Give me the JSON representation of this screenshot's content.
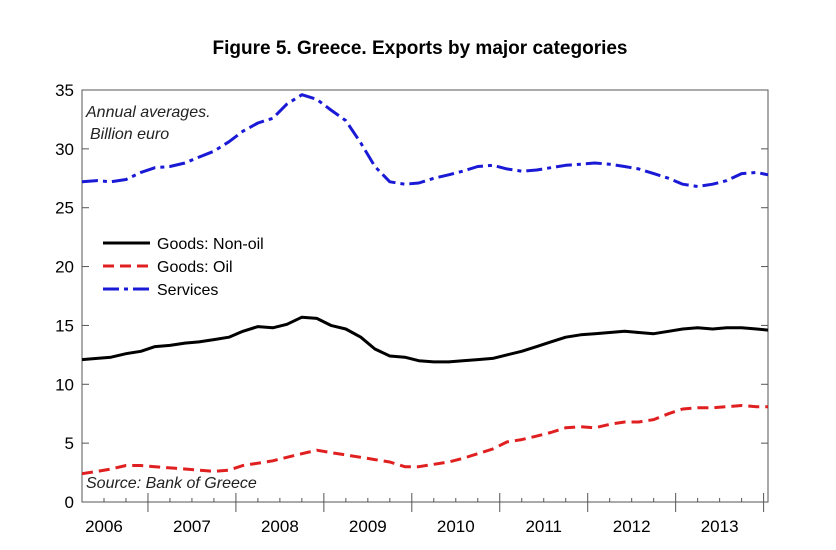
{
  "chart_data": {
    "type": "line",
    "title": "Figure 5. Greece. Exports by major categories",
    "subtitle_lines": [
      "Annual averages.",
      "Billion euro"
    ],
    "source": "Source: Bank of Greece",
    "xlabel": "",
    "ylabel": "",
    "xlim": [
      2005.75,
      2013.55
    ],
    "ylim": [
      0,
      35
    ],
    "y_ticks": [
      0,
      5,
      10,
      15,
      20,
      25,
      30,
      35
    ],
    "x_tick_labels": [
      {
        "label": "2006",
        "value": 2006.0
      },
      {
        "label": "2007",
        "value": 2007.0
      },
      {
        "label": "2008",
        "value": 2008.0
      },
      {
        "label": "2009",
        "value": 2009.0
      },
      {
        "label": "2010",
        "value": 2010.0
      },
      {
        "label": "2011",
        "value": 2011.0
      },
      {
        "label": "2012",
        "value": 2012.0
      },
      {
        "label": "2013",
        "value": 2013.0
      }
    ],
    "x_major_ticks": [
      2006.5,
      2007.5,
      2008.5,
      2009.5,
      2010.5,
      2011.5,
      2012.5,
      2013.5
    ],
    "grid": false,
    "legend_position": "left-middle",
    "series": [
      {
        "name": "Goods: Non-oil",
        "color": "#000000",
        "dash": "solid",
        "points": [
          [
            2005.75,
            12.1
          ],
          [
            2005.92,
            12.2
          ],
          [
            2006.08,
            12.3
          ],
          [
            2006.25,
            12.6
          ],
          [
            2006.42,
            12.8
          ],
          [
            2006.58,
            13.2
          ],
          [
            2006.75,
            13.3
          ],
          [
            2006.92,
            13.5
          ],
          [
            2007.08,
            13.6
          ],
          [
            2007.25,
            13.8
          ],
          [
            2007.42,
            14.0
          ],
          [
            2007.58,
            14.5
          ],
          [
            2007.75,
            14.9
          ],
          [
            2007.92,
            14.8
          ],
          [
            2008.08,
            15.1
          ],
          [
            2008.25,
            15.7
          ],
          [
            2008.42,
            15.6
          ],
          [
            2008.58,
            15.0
          ],
          [
            2008.75,
            14.7
          ],
          [
            2008.92,
            14.0
          ],
          [
            2009.08,
            13.0
          ],
          [
            2009.25,
            12.4
          ],
          [
            2009.42,
            12.3
          ],
          [
            2009.58,
            12.0
          ],
          [
            2009.75,
            11.9
          ],
          [
            2009.92,
            11.9
          ],
          [
            2010.08,
            12.0
          ],
          [
            2010.25,
            12.1
          ],
          [
            2010.42,
            12.2
          ],
          [
            2010.58,
            12.5
          ],
          [
            2010.75,
            12.8
          ],
          [
            2010.92,
            13.2
          ],
          [
            2011.08,
            13.6
          ],
          [
            2011.25,
            14.0
          ],
          [
            2011.42,
            14.2
          ],
          [
            2011.58,
            14.3
          ],
          [
            2011.75,
            14.4
          ],
          [
            2011.92,
            14.5
          ],
          [
            2012.08,
            14.4
          ],
          [
            2012.25,
            14.3
          ],
          [
            2012.42,
            14.5
          ],
          [
            2012.58,
            14.7
          ],
          [
            2012.75,
            14.8
          ],
          [
            2012.92,
            14.7
          ],
          [
            2013.08,
            14.8
          ],
          [
            2013.25,
            14.8
          ],
          [
            2013.42,
            14.7
          ],
          [
            2013.55,
            14.6
          ]
        ]
      },
      {
        "name": "Goods: Oil",
        "color": "#e02020",
        "dash": "dashed",
        "points": [
          [
            2005.75,
            2.4
          ],
          [
            2005.92,
            2.6
          ],
          [
            2006.08,
            2.8
          ],
          [
            2006.25,
            3.1
          ],
          [
            2006.42,
            3.1
          ],
          [
            2006.58,
            3.0
          ],
          [
            2006.75,
            2.9
          ],
          [
            2006.92,
            2.8
          ],
          [
            2007.08,
            2.7
          ],
          [
            2007.25,
            2.6
          ],
          [
            2007.42,
            2.7
          ],
          [
            2007.58,
            3.1
          ],
          [
            2007.75,
            3.3
          ],
          [
            2007.92,
            3.5
          ],
          [
            2008.08,
            3.8
          ],
          [
            2008.25,
            4.1
          ],
          [
            2008.42,
            4.4
          ],
          [
            2008.58,
            4.2
          ],
          [
            2008.75,
            4.0
          ],
          [
            2008.92,
            3.8
          ],
          [
            2009.08,
            3.6
          ],
          [
            2009.25,
            3.4
          ],
          [
            2009.42,
            3.0
          ],
          [
            2009.58,
            3.0
          ],
          [
            2009.75,
            3.2
          ],
          [
            2009.92,
            3.4
          ],
          [
            2010.08,
            3.7
          ],
          [
            2010.25,
            4.1
          ],
          [
            2010.42,
            4.5
          ],
          [
            2010.58,
            5.1
          ],
          [
            2010.75,
            5.3
          ],
          [
            2010.92,
            5.6
          ],
          [
            2011.08,
            5.9
          ],
          [
            2011.25,
            6.3
          ],
          [
            2011.42,
            6.4
          ],
          [
            2011.58,
            6.3
          ],
          [
            2011.75,
            6.6
          ],
          [
            2011.92,
            6.8
          ],
          [
            2012.08,
            6.8
          ],
          [
            2012.25,
            7.0
          ],
          [
            2012.42,
            7.5
          ],
          [
            2012.58,
            7.9
          ],
          [
            2012.75,
            8.0
          ],
          [
            2012.92,
            8.0
          ],
          [
            2013.08,
            8.1
          ],
          [
            2013.25,
            8.2
          ],
          [
            2013.42,
            8.1
          ],
          [
            2013.55,
            8.1
          ]
        ]
      },
      {
        "name": "Services",
        "color": "#1a1ad6",
        "dash": "dashdot",
        "points": [
          [
            2005.75,
            27.2
          ],
          [
            2005.92,
            27.3
          ],
          [
            2006.08,
            27.2
          ],
          [
            2006.25,
            27.4
          ],
          [
            2006.42,
            28.0
          ],
          [
            2006.58,
            28.4
          ],
          [
            2006.75,
            28.5
          ],
          [
            2006.92,
            28.8
          ],
          [
            2007.08,
            29.3
          ],
          [
            2007.25,
            29.8
          ],
          [
            2007.42,
            30.6
          ],
          [
            2007.58,
            31.5
          ],
          [
            2007.75,
            32.2
          ],
          [
            2007.92,
            32.6
          ],
          [
            2008.08,
            33.8
          ],
          [
            2008.25,
            34.6
          ],
          [
            2008.42,
            34.2
          ],
          [
            2008.58,
            33.3
          ],
          [
            2008.75,
            32.4
          ],
          [
            2008.92,
            30.5
          ],
          [
            2009.08,
            28.5
          ],
          [
            2009.25,
            27.2
          ],
          [
            2009.42,
            27.0
          ],
          [
            2009.58,
            27.1
          ],
          [
            2009.75,
            27.5
          ],
          [
            2009.92,
            27.8
          ],
          [
            2010.08,
            28.1
          ],
          [
            2010.25,
            28.5
          ],
          [
            2010.42,
            28.6
          ],
          [
            2010.58,
            28.3
          ],
          [
            2010.75,
            28.1
          ],
          [
            2010.92,
            28.2
          ],
          [
            2011.08,
            28.4
          ],
          [
            2011.25,
            28.6
          ],
          [
            2011.42,
            28.7
          ],
          [
            2011.58,
            28.8
          ],
          [
            2011.75,
            28.7
          ],
          [
            2011.92,
            28.5
          ],
          [
            2012.08,
            28.3
          ],
          [
            2012.25,
            27.9
          ],
          [
            2012.42,
            27.5
          ],
          [
            2012.58,
            27.0
          ],
          [
            2012.75,
            26.8
          ],
          [
            2012.92,
            27.0
          ],
          [
            2013.08,
            27.3
          ],
          [
            2013.25,
            27.9
          ],
          [
            2013.42,
            28.0
          ],
          [
            2013.55,
            27.8
          ]
        ]
      }
    ]
  }
}
